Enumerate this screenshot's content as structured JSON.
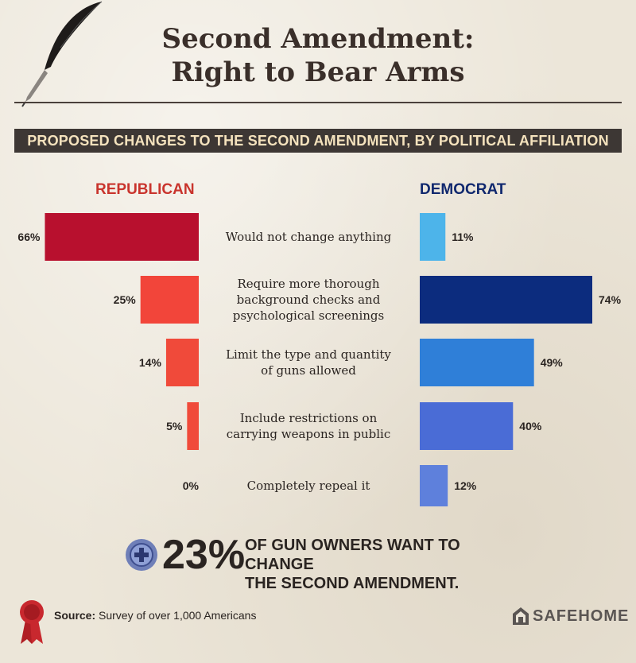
{
  "header": {
    "title_line1": "Second Amendment:",
    "title_line2": "Right to Bear Arms"
  },
  "chart_data": {
    "type": "bar",
    "title": "PROPOSED CHANGES TO THE SECOND AMENDMENT, BY POLITICAL AFFILIATION",
    "categories": [
      "Would not change anything",
      "Require more thorough background checks and psychological screenings",
      "Limit the type and quantity of guns allowed",
      "Include restrictions on carrying weapons in public",
      "Completely repeal it"
    ],
    "series": [
      {
        "name": "REPUBLICAN",
        "values": [
          66,
          25,
          14,
          5,
          0
        ],
        "color": "#c41230"
      },
      {
        "name": "DEMOCRAT",
        "values": [
          11,
          74,
          49,
          40,
          12
        ],
        "color": "#0d2a7a"
      }
    ],
    "value_suffix": "%",
    "rep_colors": [
      "#b8102e",
      "#f2453a",
      "#f04a3a",
      "#f04a3a",
      "#f04a3a"
    ],
    "dem_colors": [
      "#4db4ea",
      "#0c2c7e",
      "#2f7fd8",
      "#4a6cd6",
      "#5e80dc"
    ],
    "xlim": [
      0,
      74
    ]
  },
  "category_lines": [
    [
      "Would not change anything"
    ],
    [
      "Require more thorough",
      "background checks and",
      "psychological screenings"
    ],
    [
      "Limit the type and quantity",
      "of guns allowed"
    ],
    [
      "Include restrictions on",
      "carrying weapons in public"
    ],
    [
      "Completely repeal it"
    ]
  ],
  "stat": {
    "number": "23%",
    "text_line1": "OF GUN OWNERS WANT TO CHANGE",
    "text_line2": "THE SECOND AMENDMENT."
  },
  "footer": {
    "source_label": "Source:",
    "source_text": "Survey of over 1,000 Americans",
    "logo_text": "SAFEHOME"
  }
}
